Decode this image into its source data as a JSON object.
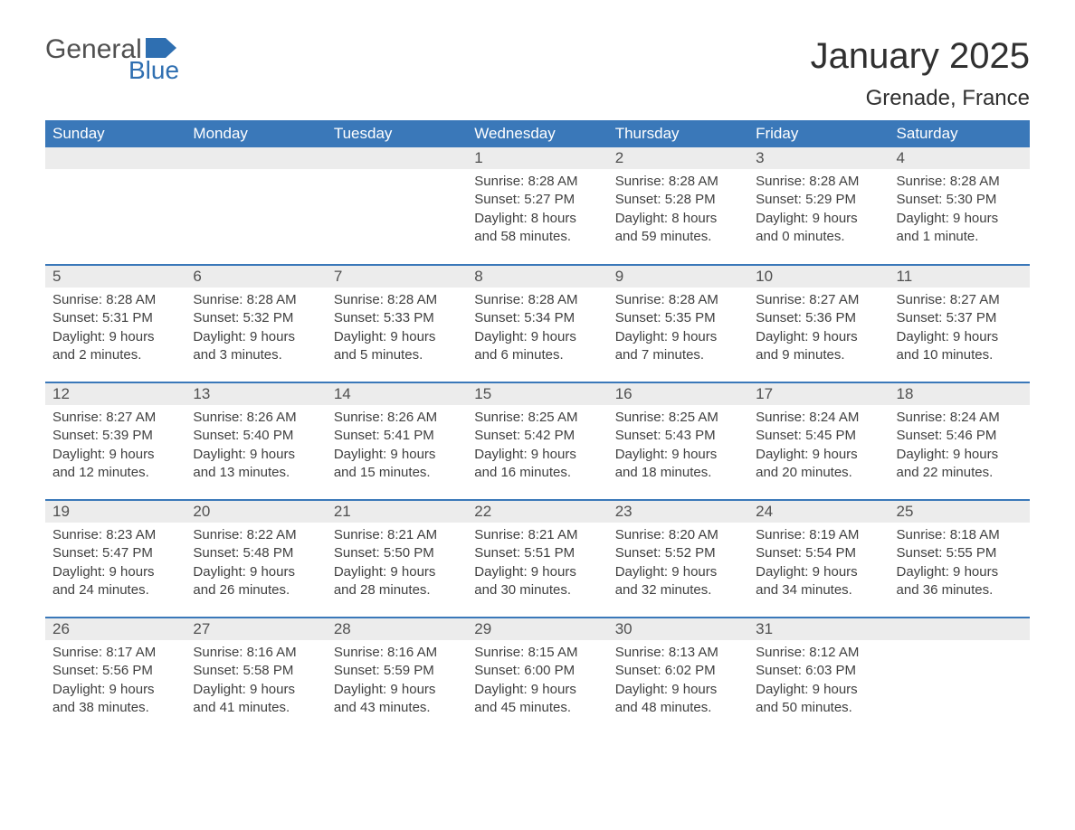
{
  "logo": {
    "text1": "General",
    "text2": "Blue",
    "flag_color": "#2f6fb1"
  },
  "title": "January 2025",
  "location": "Grenade, France",
  "colors": {
    "header_bg": "#3a78b9",
    "header_fg": "#ffffff",
    "daynum_bg": "#ececec",
    "text": "#404040",
    "rule": "#3a78b9"
  },
  "day_names": [
    "Sunday",
    "Monday",
    "Tuesday",
    "Wednesday",
    "Thursday",
    "Friday",
    "Saturday"
  ],
  "weeks": [
    [
      null,
      null,
      null,
      {
        "n": "1",
        "sunrise": "8:28 AM",
        "sunset": "5:27 PM",
        "daylight": "8 hours and 58 minutes."
      },
      {
        "n": "2",
        "sunrise": "8:28 AM",
        "sunset": "5:28 PM",
        "daylight": "8 hours and 59 minutes."
      },
      {
        "n": "3",
        "sunrise": "8:28 AM",
        "sunset": "5:29 PM",
        "daylight": "9 hours and 0 minutes."
      },
      {
        "n": "4",
        "sunrise": "8:28 AM",
        "sunset": "5:30 PM",
        "daylight": "9 hours and 1 minute."
      }
    ],
    [
      {
        "n": "5",
        "sunrise": "8:28 AM",
        "sunset": "5:31 PM",
        "daylight": "9 hours and 2 minutes."
      },
      {
        "n": "6",
        "sunrise": "8:28 AM",
        "sunset": "5:32 PM",
        "daylight": "9 hours and 3 minutes."
      },
      {
        "n": "7",
        "sunrise": "8:28 AM",
        "sunset": "5:33 PM",
        "daylight": "9 hours and 5 minutes."
      },
      {
        "n": "8",
        "sunrise": "8:28 AM",
        "sunset": "5:34 PM",
        "daylight": "9 hours and 6 minutes."
      },
      {
        "n": "9",
        "sunrise": "8:28 AM",
        "sunset": "5:35 PM",
        "daylight": "9 hours and 7 minutes."
      },
      {
        "n": "10",
        "sunrise": "8:27 AM",
        "sunset": "5:36 PM",
        "daylight": "9 hours and 9 minutes."
      },
      {
        "n": "11",
        "sunrise": "8:27 AM",
        "sunset": "5:37 PM",
        "daylight": "9 hours and 10 minutes."
      }
    ],
    [
      {
        "n": "12",
        "sunrise": "8:27 AM",
        "sunset": "5:39 PM",
        "daylight": "9 hours and 12 minutes."
      },
      {
        "n": "13",
        "sunrise": "8:26 AM",
        "sunset": "5:40 PM",
        "daylight": "9 hours and 13 minutes."
      },
      {
        "n": "14",
        "sunrise": "8:26 AM",
        "sunset": "5:41 PM",
        "daylight": "9 hours and 15 minutes."
      },
      {
        "n": "15",
        "sunrise": "8:25 AM",
        "sunset": "5:42 PM",
        "daylight": "9 hours and 16 minutes."
      },
      {
        "n": "16",
        "sunrise": "8:25 AM",
        "sunset": "5:43 PM",
        "daylight": "9 hours and 18 minutes."
      },
      {
        "n": "17",
        "sunrise": "8:24 AM",
        "sunset": "5:45 PM",
        "daylight": "9 hours and 20 minutes."
      },
      {
        "n": "18",
        "sunrise": "8:24 AM",
        "sunset": "5:46 PM",
        "daylight": "9 hours and 22 minutes."
      }
    ],
    [
      {
        "n": "19",
        "sunrise": "8:23 AM",
        "sunset": "5:47 PM",
        "daylight": "9 hours and 24 minutes."
      },
      {
        "n": "20",
        "sunrise": "8:22 AM",
        "sunset": "5:48 PM",
        "daylight": "9 hours and 26 minutes."
      },
      {
        "n": "21",
        "sunrise": "8:21 AM",
        "sunset": "5:50 PM",
        "daylight": "9 hours and 28 minutes."
      },
      {
        "n": "22",
        "sunrise": "8:21 AM",
        "sunset": "5:51 PM",
        "daylight": "9 hours and 30 minutes."
      },
      {
        "n": "23",
        "sunrise": "8:20 AM",
        "sunset": "5:52 PM",
        "daylight": "9 hours and 32 minutes."
      },
      {
        "n": "24",
        "sunrise": "8:19 AM",
        "sunset": "5:54 PM",
        "daylight": "9 hours and 34 minutes."
      },
      {
        "n": "25",
        "sunrise": "8:18 AM",
        "sunset": "5:55 PM",
        "daylight": "9 hours and 36 minutes."
      }
    ],
    [
      {
        "n": "26",
        "sunrise": "8:17 AM",
        "sunset": "5:56 PM",
        "daylight": "9 hours and 38 minutes."
      },
      {
        "n": "27",
        "sunrise": "8:16 AM",
        "sunset": "5:58 PM",
        "daylight": "9 hours and 41 minutes."
      },
      {
        "n": "28",
        "sunrise": "8:16 AM",
        "sunset": "5:59 PM",
        "daylight": "9 hours and 43 minutes."
      },
      {
        "n": "29",
        "sunrise": "8:15 AM",
        "sunset": "6:00 PM",
        "daylight": "9 hours and 45 minutes."
      },
      {
        "n": "30",
        "sunrise": "8:13 AM",
        "sunset": "6:02 PM",
        "daylight": "9 hours and 48 minutes."
      },
      {
        "n": "31",
        "sunrise": "8:12 AM",
        "sunset": "6:03 PM",
        "daylight": "9 hours and 50 minutes."
      },
      null
    ]
  ],
  "labels": {
    "sunrise": "Sunrise: ",
    "sunset": "Sunset: ",
    "daylight": "Daylight: "
  }
}
